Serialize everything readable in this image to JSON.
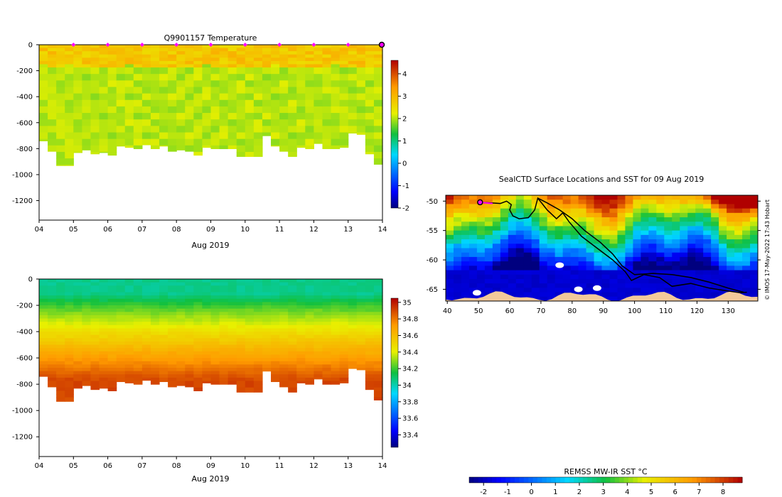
{
  "chart_data": [
    {
      "id": "temperature",
      "type": "heatmap",
      "title": "Q9901157  Temperature",
      "xlabel": "Aug 2019",
      "ylabel": "",
      "xticks": [
        "04",
        "05",
        "06",
        "07",
        "08",
        "09",
        "10",
        "11",
        "12",
        "13",
        "14"
      ],
      "xlim": [
        4,
        14
      ],
      "yticks": [
        0,
        -200,
        -400,
        -600,
        -800,
        -1000,
        -1200
      ],
      "ylim": [
        -1350,
        0
      ],
      "colorbar": {
        "min": -2,
        "max": 4.6,
        "ticks": [
          4,
          3,
          2,
          1,
          0,
          -1,
          -2
        ]
      },
      "profile_markers_day": [
        5,
        6,
        7,
        8,
        9,
        10,
        11,
        12,
        13
      ],
      "current_marker_day": 14,
      "profile_max_depth": [
        -740,
        -820,
        -930,
        -930,
        -830,
        -810,
        -840,
        -830,
        -850,
        -780,
        -790,
        -800,
        -770,
        -800,
        -780,
        -820,
        -810,
        -820,
        -850,
        -790,
        -800,
        -800,
        -800,
        -860,
        -860,
        -860,
        -700,
        -780,
        -820,
        -860,
        -790,
        -800,
        -760,
        -800,
        -800,
        -790,
        -680,
        -690,
        -840,
        -920
      ],
      "mixed_layer_depth": [
        -160,
        -180,
        -170,
        -160,
        -180,
        -170,
        -175,
        -165,
        -180,
        -170,
        -160,
        -185,
        -175,
        -170,
        -165,
        -180,
        -170,
        -175,
        -185,
        -160,
        -170,
        -180,
        -175,
        -165,
        -170,
        -180,
        -175,
        -160,
        -170,
        -185,
        -175,
        -165,
        -180,
        -170,
        -160,
        -175,
        -185,
        -170,
        -180,
        -175
      ],
      "surface_value_range": [
        2.5,
        3.1
      ],
      "deep_value_range": [
        1.8,
        2.2
      ]
    },
    {
      "id": "salinity",
      "type": "heatmap",
      "title": "",
      "xlabel": "Aug 2019",
      "ylabel": "",
      "xticks": [
        "04",
        "05",
        "06",
        "07",
        "08",
        "09",
        "10",
        "11",
        "12",
        "13",
        "14"
      ],
      "xlim": [
        4,
        14
      ],
      "yticks": [
        0,
        -200,
        -400,
        -600,
        -800,
        -1000,
        -1200
      ],
      "ylim": [
        -1350,
        0
      ],
      "colorbar": {
        "min": 33.25,
        "max": 35.05,
        "ticks": [
          35,
          34.8,
          34.6,
          34.4,
          34.2,
          34,
          33.8,
          33.6,
          33.4
        ]
      },
      "profile_max_depth": [
        -740,
        -820,
        -930,
        -930,
        -830,
        -810,
        -840,
        -830,
        -850,
        -780,
        -790,
        -800,
        -770,
        -800,
        -780,
        -820,
        -810,
        -820,
        -850,
        -790,
        -800,
        -800,
        -800,
        -860,
        -860,
        -860,
        -700,
        -780,
        -820,
        -860,
        -790,
        -800,
        -760,
        -800,
        -800,
        -790,
        -680,
        -690,
        -840,
        -920
      ],
      "surface_value": 34.05,
      "deep_value": 34.9
    },
    {
      "id": "sst-map",
      "type": "heatmap",
      "title": "SealCTD Surface Locations and SST for 09 Aug 2019",
      "xlabel": "",
      "ylabel": "",
      "xticks": [
        "40",
        "50",
        "60",
        "70",
        "80",
        "90",
        "100",
        "110",
        "120",
        "130"
      ],
      "xlim": [
        39.5,
        139.5
      ],
      "yticks": [
        "-50",
        "-55",
        "-60",
        "-65"
      ],
      "ylim": [
        -67,
        -49
      ],
      "colorbar": {
        "label": "REMSS MW-IR SST °C",
        "min": -2.6,
        "max": 8.8,
        "ticks": [
          "-2",
          "-1",
          "0",
          "1",
          "2",
          "3",
          "4",
          "5",
          "6",
          "7",
          "8"
        ]
      },
      "track_segments": [
        [
          [
            50.5,
            -50.2
          ],
          [
            54,
            -50.3
          ],
          [
            57,
            -50.4
          ],
          [
            59,
            -50.0
          ],
          [
            60.5,
            -50.6
          ],
          [
            60,
            -51.5
          ],
          [
            61,
            -52.5
          ],
          [
            63,
            -53.0
          ],
          [
            66,
            -52.8
          ],
          [
            68,
            -51.5
          ],
          [
            69,
            -49.5
          ],
          [
            72,
            -51.5
          ],
          [
            75,
            -53.0
          ],
          [
            77,
            -52.0
          ],
          [
            79,
            -53.5
          ],
          [
            83,
            -56.0
          ],
          [
            88,
            -58.0
          ],
          [
            93,
            -60.0
          ],
          [
            97,
            -62.0
          ],
          [
            99,
            -63.5
          ],
          [
            103,
            -62.5
          ],
          [
            108,
            -63.0
          ],
          [
            112,
            -64.5
          ],
          [
            118,
            -64.0
          ],
          [
            124,
            -64.8
          ],
          [
            130,
            -65.3
          ],
          [
            134,
            -65.6
          ],
          [
            136,
            -65.5
          ]
        ],
        [
          [
            69,
            -49.5
          ],
          [
            72,
            -50.3
          ],
          [
            76,
            -51.5
          ],
          [
            80,
            -53.0
          ],
          [
            84,
            -55.0
          ],
          [
            89,
            -57.0
          ],
          [
            93,
            -59.0
          ],
          [
            96,
            -61.0
          ],
          [
            100,
            -62.5
          ],
          [
            106,
            -62.3
          ],
          [
            112,
            -62.5
          ],
          [
            118,
            -63.0
          ],
          [
            124,
            -63.8
          ],
          [
            130,
            -64.8
          ],
          [
            135,
            -65.5
          ]
        ]
      ],
      "start_marker": [
        50.5,
        -50.2
      ],
      "land_patches": [
        [
          76,
          -60.9
        ],
        [
          88,
          -64.8
        ],
        [
          82,
          -65.0
        ],
        [
          49.5,
          -65.6
        ]
      ],
      "watermark": "© IMOS 17-May-2022 17:43 Hobart"
    }
  ]
}
